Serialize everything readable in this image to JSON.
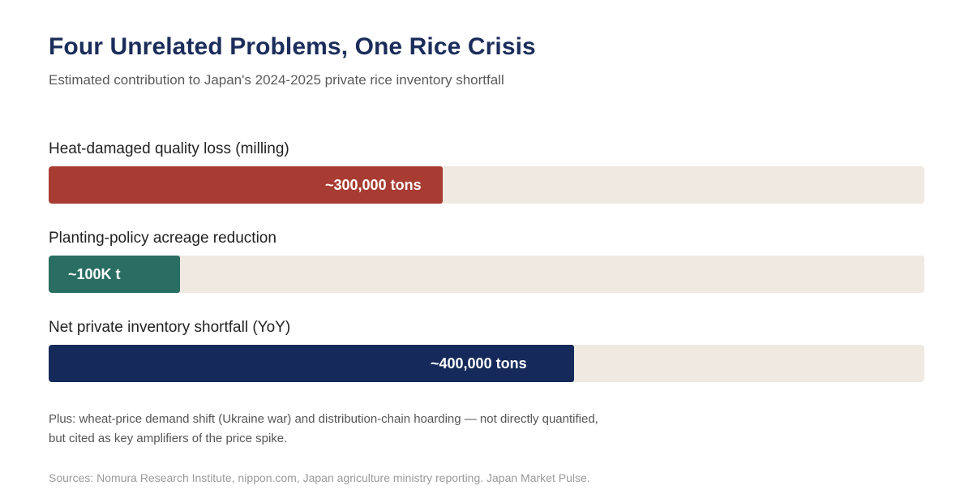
{
  "chart_data": {
    "type": "bar",
    "title": "Four Unrelated Problems, One Rice Crisis",
    "subtitle": "Estimated contribution to Japan's 2024-2025 private rice inventory shortfall",
    "xlim": [
      0,
      667000
    ],
    "categories": [
      "Heat-damaged quality loss (milling)",
      "Planting-policy acreage reduction",
      "Net private inventory shortfall (YoY)"
    ],
    "values": [
      300000,
      100000,
      400000
    ],
    "value_labels": [
      "~300,000 tons",
      "~100K t",
      "~400,000 tons"
    ],
    "colors": [
      "#a83c32",
      "#2a6e63",
      "#152a5a"
    ],
    "track_color": "#efe9e1",
    "note_lines": [
      "Plus: wheat-price demand shift (Ukraine war) and distribution-chain hoarding — not directly quantified,",
      "but cited as key amplifiers of the price spike."
    ],
    "sources": "Sources: Nomura Research Institute, nippon.com, Japan agriculture ministry reporting. Japan Market Pulse."
  }
}
